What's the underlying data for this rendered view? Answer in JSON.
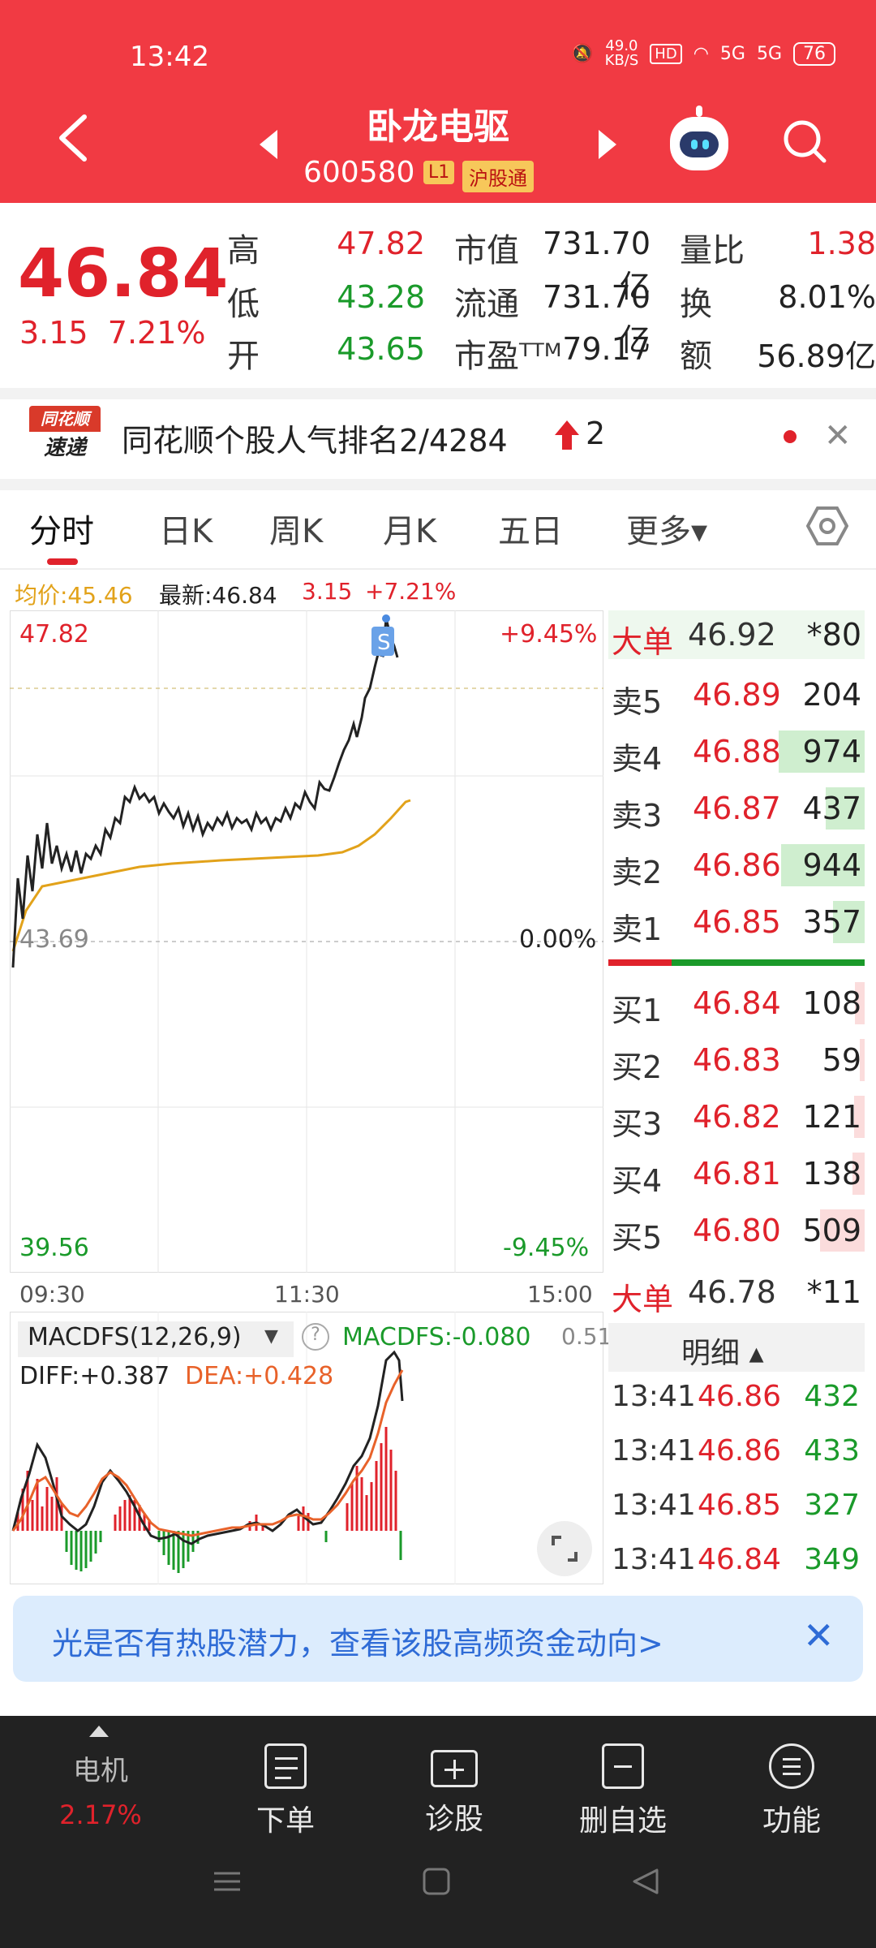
{
  "status": {
    "time": "13:42",
    "speed": "49.0\nKB/S",
    "net1": "5G",
    "net2": "5G",
    "battery": "76"
  },
  "header": {
    "name": "卧龙电驱",
    "code": "600580",
    "tag_level": "L1",
    "tag_market": "沪股通"
  },
  "quote": {
    "price": "46.84",
    "change": "3.15",
    "change_pct": "7.21%",
    "high_label": "高",
    "high": "47.82",
    "low_label": "低",
    "low": "43.28",
    "open_label": "开",
    "open": "43.65",
    "mcap_label": "市值",
    "mcap": "731.70亿",
    "float_label": "流通",
    "float": "731.70亿",
    "pe_label": "市盈ᵀᵀᴹ",
    "pe": "79.17",
    "vr_label": "量比",
    "vr": "1.38",
    "turn_label": "换",
    "turn": "8.01%",
    "amt_label": "额",
    "amt": "56.89亿"
  },
  "rank": {
    "logo_top": "同花顺",
    "logo_bottom": "速递",
    "text": "同花顺个股人气排名2/4284",
    "change": "2"
  },
  "tabs": [
    "分时",
    "日K",
    "周K",
    "月K",
    "五日",
    "更多▾"
  ],
  "chart_info": {
    "avg": "均价:45.46",
    "latest": "最新:46.84",
    "chg": "3.15",
    "pct": "+7.21%"
  },
  "chart_labels": {
    "top": "47.82",
    "top_pct": "+9.45%",
    "mid": "43.69",
    "mid_pct": "0.00%",
    "bottom": "39.56",
    "bottom_pct": "-9.45%",
    "t1": "09:30",
    "t2": "11:30",
    "t3": "15:00",
    "marker": "S"
  },
  "macd": {
    "name": "MACDFS(12,26,9)",
    "value": "MACDFS:-0.080",
    "diff": "DIFF:+0.387",
    "dea": "DEA:+0.428",
    "scale": "0.51",
    "help": "?"
  },
  "orderbook": {
    "big_sell": {
      "label": "大单",
      "price": "46.92",
      "vol": "*80"
    },
    "asks": [
      {
        "label": "卖5",
        "price": "46.89",
        "vol": "204",
        "bar": 0.0
      },
      {
        "label": "卖4",
        "price": "46.88",
        "vol": "974",
        "bar": 0.98
      },
      {
        "label": "卖3",
        "price": "46.87",
        "vol": "437",
        "bar": 0.44
      },
      {
        "label": "卖2",
        "price": "46.86",
        "vol": "944",
        "bar": 0.95
      },
      {
        "label": "卖1",
        "price": "46.85",
        "vol": "357",
        "bar": 0.36
      }
    ],
    "bids": [
      {
        "label": "买1",
        "price": "46.84",
        "vol": "108",
        "bar": 0.11
      },
      {
        "label": "买2",
        "price": "46.83",
        "vol": "59",
        "bar": 0.06
      },
      {
        "label": "买3",
        "price": "46.82",
        "vol": "121",
        "bar": 0.12
      },
      {
        "label": "买4",
        "price": "46.81",
        "vol": "138",
        "bar": 0.14
      },
      {
        "label": "买5",
        "price": "46.80",
        "vol": "509",
        "bar": 0.51
      }
    ],
    "big_buy": {
      "label": "大单",
      "price": "46.78",
      "vol": "*11"
    }
  },
  "detail": {
    "title": "明细 ▴",
    "rows": [
      {
        "time": "13:41",
        "price": "46.86",
        "vol": "432"
      },
      {
        "time": "13:41",
        "price": "46.86",
        "vol": "433"
      },
      {
        "time": "13:41",
        "price": "46.85",
        "vol": "327"
      },
      {
        "time": "13:41",
        "price": "46.84",
        "vol": "349"
      }
    ]
  },
  "ad": {
    "text": "光是否有热股潜力，查看该股高频资金动向>",
    "close": "✕"
  },
  "bottom_nav": {
    "sector": "电机",
    "sector_pct": "2.17%",
    "order": "下单",
    "diagnose": "诊股",
    "remove": "删自选",
    "func": "功能"
  },
  "colors": {
    "header": "#f13a43",
    "up": "#e0222b",
    "down": "#1a9a2a",
    "avg_line": "#e2a21a"
  }
}
